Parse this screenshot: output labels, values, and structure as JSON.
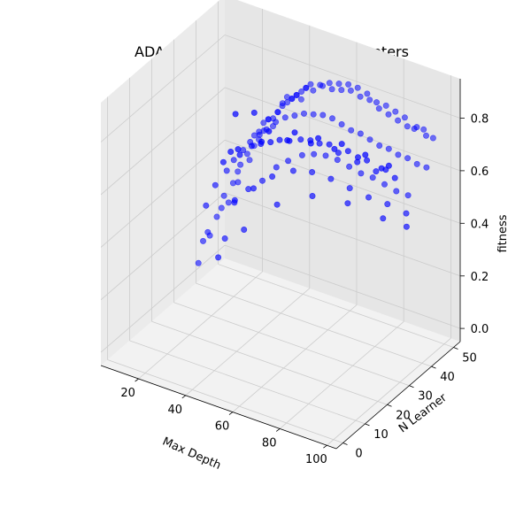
{
  "chart_data": {
    "type": "scatter",
    "projection": "3d",
    "title": "ADABoost fitness vs. HyperParameters",
    "xlabel": "Max Depth",
    "ylabel": "N Learner",
    "zlabel": "fitness",
    "xlim": [
      4,
      104
    ],
    "ylim": [
      -3,
      53
    ],
    "zlim": [
      -0.05,
      0.95
    ],
    "xticks": [
      20,
      40,
      60,
      80,
      100
    ],
    "yticks": [
      0,
      10,
      20,
      30,
      40,
      50
    ],
    "zticks": [
      0.0,
      0.2,
      0.4,
      0.6,
      0.8
    ],
    "ztick_labels": [
      "0.0",
      "0.2",
      "0.4",
      "0.6",
      "0.8"
    ],
    "grid": true,
    "marker_color": "#0000ff",
    "pane_color": "#f2f2f2",
    "grid_color": "#cccccc",
    "points": [
      [
        5,
        40,
        0.03
      ],
      [
        7,
        40,
        0.12
      ],
      [
        9,
        40,
        0.16
      ],
      [
        8,
        42,
        0.13
      ],
      [
        10,
        43,
        0.2
      ],
      [
        12,
        43,
        0.24
      ],
      [
        14,
        42,
        0.3
      ],
      [
        15,
        43,
        0.27
      ],
      [
        16,
        44,
        0.34
      ],
      [
        18,
        44,
        0.39
      ],
      [
        19,
        43,
        0.36
      ],
      [
        20,
        43,
        0.43
      ],
      [
        22,
        44,
        0.47
      ],
      [
        23,
        44,
        0.45
      ],
      [
        24,
        45,
        0.5
      ],
      [
        25,
        44,
        0.55
      ],
      [
        26,
        45,
        0.53
      ],
      [
        27,
        44,
        0.57
      ],
      [
        28,
        45,
        0.6
      ],
      [
        29,
        44,
        0.58
      ],
      [
        30,
        45,
        0.62
      ],
      [
        31,
        44,
        0.63
      ],
      [
        32,
        45,
        0.6
      ],
      [
        33,
        44,
        0.64
      ],
      [
        34,
        45,
        0.66
      ],
      [
        35,
        44,
        0.67
      ],
      [
        36,
        45,
        0.69
      ],
      [
        37,
        44,
        0.71
      ],
      [
        38,
        45,
        0.73
      ],
      [
        39,
        44,
        0.72
      ],
      [
        40,
        45,
        0.73
      ],
      [
        41,
        44,
        0.74
      ],
      [
        42,
        45,
        0.75
      ],
      [
        43,
        44,
        0.76
      ],
      [
        44,
        45,
        0.74
      ],
      [
        45,
        44,
        0.78
      ],
      [
        46,
        45,
        0.79
      ],
      [
        47,
        44,
        0.8
      ],
      [
        48,
        45,
        0.81
      ],
      [
        50,
        44,
        0.8
      ],
      [
        52,
        45,
        0.82
      ],
      [
        54,
        44,
        0.83
      ],
      [
        56,
        45,
        0.84
      ],
      [
        58,
        44,
        0.83
      ],
      [
        60,
        45,
        0.85
      ],
      [
        62,
        44,
        0.84
      ],
      [
        64,
        45,
        0.86
      ],
      [
        66,
        44,
        0.85
      ],
      [
        68,
        45,
        0.86
      ],
      [
        70,
        44,
        0.84
      ],
      [
        72,
        45,
        0.85
      ],
      [
        74,
        44,
        0.84
      ],
      [
        76,
        45,
        0.83
      ],
      [
        78,
        44,
        0.82
      ],
      [
        80,
        45,
        0.83
      ],
      [
        82,
        44,
        0.81
      ],
      [
        84,
        45,
        0.82
      ],
      [
        86,
        44,
        0.8
      ],
      [
        88,
        45,
        0.81
      ],
      [
        90,
        44,
        0.79
      ],
      [
        92,
        45,
        0.78
      ],
      [
        94,
        44,
        0.8
      ],
      [
        96,
        45,
        0.79
      ],
      [
        98,
        44,
        0.78
      ],
      [
        100,
        45,
        0.77
      ],
      [
        12,
        36,
        0.3
      ],
      [
        15,
        37,
        0.38
      ],
      [
        18,
        39,
        0.43
      ],
      [
        21,
        39,
        0.48
      ],
      [
        24,
        40,
        0.52
      ],
      [
        27,
        40,
        0.56
      ],
      [
        30,
        41,
        0.59
      ],
      [
        33,
        41,
        0.62
      ],
      [
        36,
        42,
        0.65
      ],
      [
        40,
        42,
        0.68
      ],
      [
        44,
        42,
        0.7
      ],
      [
        48,
        42,
        0.72
      ],
      [
        52,
        42,
        0.73
      ],
      [
        56,
        42,
        0.74
      ],
      [
        60,
        42,
        0.74
      ],
      [
        64,
        42,
        0.73
      ],
      [
        68,
        42,
        0.72
      ],
      [
        72,
        42,
        0.72
      ],
      [
        76,
        42,
        0.71
      ],
      [
        80,
        42,
        0.7
      ],
      [
        84,
        42,
        0.7
      ],
      [
        88,
        42,
        0.69
      ],
      [
        92,
        42,
        0.69
      ],
      [
        96,
        42,
        0.68
      ],
      [
        100,
        42,
        0.68
      ],
      [
        25,
        35,
        0.36
      ],
      [
        30,
        36,
        0.42
      ],
      [
        35,
        37,
        0.46
      ],
      [
        40,
        38,
        0.52
      ],
      [
        45,
        38,
        0.56
      ],
      [
        50,
        39,
        0.59
      ],
      [
        55,
        39,
        0.61
      ],
      [
        60,
        39,
        0.62
      ],
      [
        65,
        39,
        0.62
      ],
      [
        70,
        39,
        0.61
      ],
      [
        75,
        39,
        0.6
      ],
      [
        80,
        39,
        0.6
      ],
      [
        85,
        39,
        0.59
      ],
      [
        90,
        39,
        0.58
      ],
      [
        95,
        39,
        0.58
      ],
      [
        28,
        32,
        0.4
      ],
      [
        35,
        33,
        0.46
      ],
      [
        42,
        34,
        0.52
      ],
      [
        50,
        35,
        0.56
      ],
      [
        58,
        35,
        0.58
      ],
      [
        66,
        35,
        0.58
      ],
      [
        74,
        35,
        0.57
      ],
      [
        82,
        35,
        0.56
      ],
      [
        90,
        35,
        0.56
      ],
      [
        98,
        35,
        0.55
      ],
      [
        20,
        36,
        0.2
      ],
      [
        25,
        30,
        0.55
      ],
      [
        32,
        30,
        0.6
      ],
      [
        40,
        31,
        0.66
      ],
      [
        48,
        31,
        0.7
      ],
      [
        56,
        32,
        0.72
      ],
      [
        64,
        32,
        0.73
      ],
      [
        72,
        32,
        0.72
      ],
      [
        80,
        32,
        0.71
      ],
      [
        88,
        32,
        0.7
      ],
      [
        96,
        32,
        0.7
      ],
      [
        30,
        28,
        0.62
      ],
      [
        38,
        29,
        0.66
      ],
      [
        46,
        29,
        0.7
      ],
      [
        54,
        29,
        0.73
      ],
      [
        62,
        30,
        0.75
      ],
      [
        70,
        30,
        0.76
      ],
      [
        78,
        30,
        0.76
      ],
      [
        86,
        30,
        0.75
      ],
      [
        94,
        30,
        0.74
      ],
      [
        35,
        26,
        0.66
      ],
      [
        45,
        26,
        0.72
      ],
      [
        55,
        27,
        0.75
      ],
      [
        65,
        27,
        0.77
      ],
      [
        75,
        27,
        0.78
      ],
      [
        85,
        27,
        0.78
      ],
      [
        95,
        27,
        0.77
      ],
      [
        33,
        27,
        0.78
      ],
      [
        40,
        28,
        0.8
      ],
      [
        50,
        24,
        0.79
      ],
      [
        60,
        25,
        0.81
      ],
      [
        70,
        25,
        0.82
      ],
      [
        80,
        25,
        0.83
      ],
      [
        90,
        25,
        0.82
      ],
      [
        100,
        25,
        0.81
      ],
      [
        20,
        33,
        0.15
      ],
      [
        30,
        34,
        0.28
      ],
      [
        45,
        33,
        0.43
      ],
      [
        60,
        33,
        0.51
      ],
      [
        75,
        33,
        0.53
      ],
      [
        90,
        33,
        0.52
      ],
      [
        100,
        33,
        0.52
      ]
    ]
  }
}
